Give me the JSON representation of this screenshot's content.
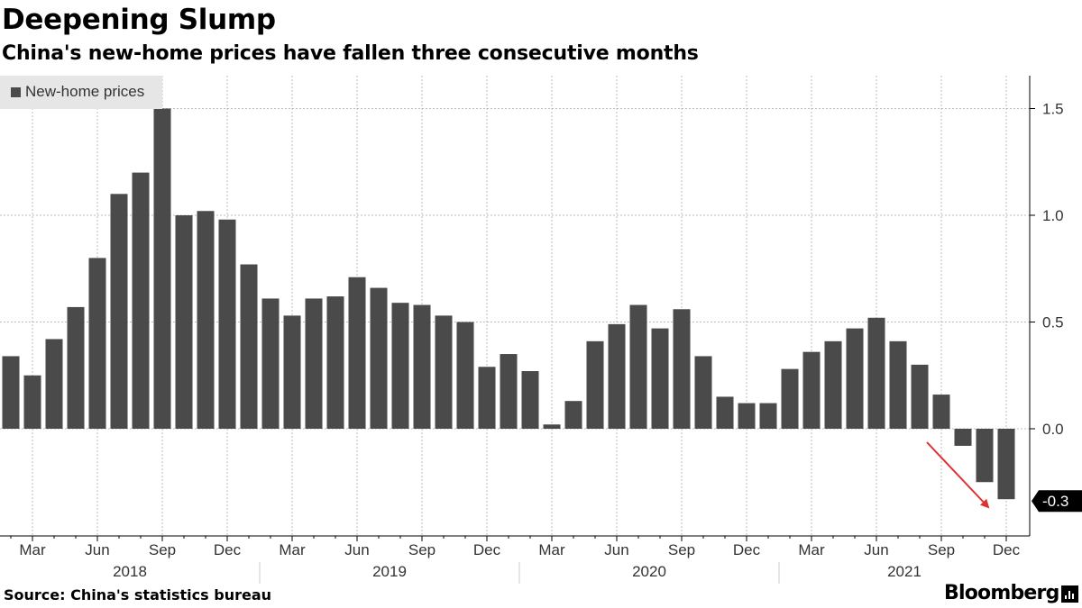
{
  "title": "Deepening Slump",
  "subtitle": "China's new-home prices have fallen three consecutive months",
  "source": "Source: China's statistics bureau",
  "brand": "Bloomberg",
  "colors": {
    "bar": "#4a4a4a",
    "grid": "#bdbdbd",
    "arrow": "#e03030",
    "axis": "#000000",
    "label_box": "#000000"
  },
  "chart_data": {
    "type": "bar",
    "series": [
      {
        "name": "New-home prices",
        "values": [
          0.34,
          0.25,
          0.42,
          0.57,
          0.8,
          1.1,
          1.2,
          1.5,
          1.0,
          1.02,
          0.98,
          0.77,
          0.61,
          0.53,
          0.61,
          0.62,
          0.71,
          0.66,
          0.59,
          0.58,
          0.53,
          0.5,
          0.29,
          0.35,
          0.27,
          0.02,
          0.13,
          0.41,
          0.49,
          0.58,
          0.47,
          0.56,
          0.34,
          0.15,
          0.12,
          0.12,
          0.28,
          0.36,
          0.41,
          0.47,
          0.52,
          0.41,
          0.3,
          0.16,
          -0.08,
          -0.25,
          -0.33
        ]
      }
    ],
    "x_start": "2018-02",
    "x_end": "2021-12",
    "x_tick_labels": [
      "Mar",
      "Jun",
      "Sep",
      "Dec",
      "Mar",
      "Jun",
      "Sep",
      "Dec",
      "Mar",
      "Jun",
      "Sep",
      "Dec",
      "Mar",
      "Jun",
      "Sep",
      "Dec"
    ],
    "year_labels": [
      "2018",
      "2019",
      "2020",
      "2021"
    ],
    "y_ticks": [
      "1.5",
      "1.0",
      "0.5",
      "0.0"
    ],
    "ylim": [
      -0.5,
      1.65
    ],
    "last_value_label": "-0.3",
    "legend": "top-left",
    "grid": true
  }
}
